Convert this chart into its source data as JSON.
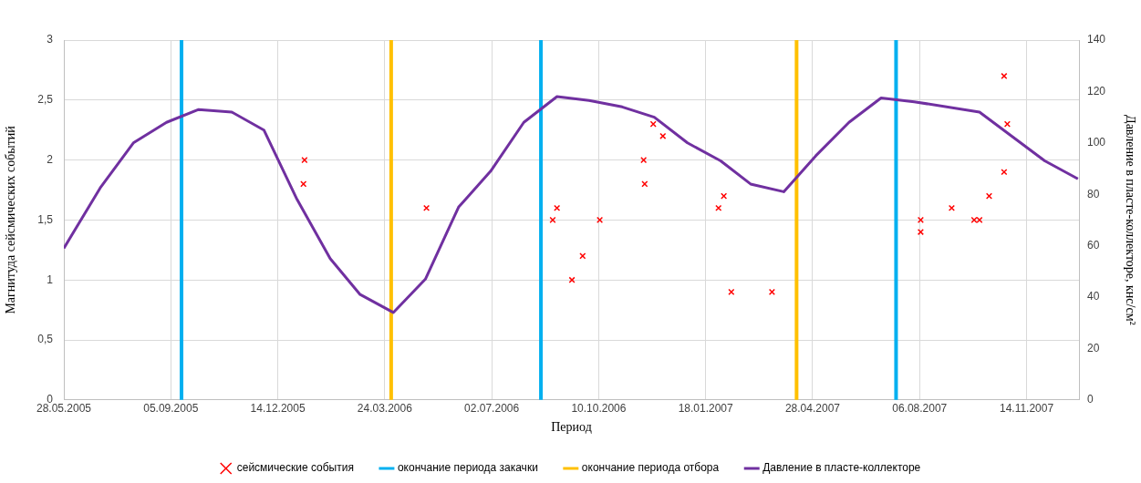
{
  "chart_data": {
    "type": "scatter",
    "xlabel": "Период",
    "ylabel": "Магнитуда сейсмических событий",
    "y2label": "Давление в пласте-коллекторе, кнс/см²",
    "xlim": [
      "2005-05-28",
      "2008-01-02"
    ],
    "xticks": [
      {
        "value": "2005-05-28",
        "label": "28.05.2005"
      },
      {
        "value": "2005-09-05",
        "label": "05.09.2005"
      },
      {
        "value": "2005-12-14",
        "label": "14.12.2005"
      },
      {
        "value": "2006-03-24",
        "label": "24.03.2006"
      },
      {
        "value": "2006-07-02",
        "label": "02.07.2006"
      },
      {
        "value": "2006-10-10",
        "label": "10.10.2006"
      },
      {
        "value": "2007-01-18",
        "label": "18.01.2007"
      },
      {
        "value": "2007-04-28",
        "label": "28.04.2007"
      },
      {
        "value": "2007-08-06",
        "label": "06.08.2007"
      },
      {
        "value": "2007-11-14",
        "label": "14.11.2007"
      }
    ],
    "ylim": [
      0,
      3
    ],
    "yticks": [
      0,
      {
        "value": 0.5,
        "label": "0,5"
      },
      1,
      {
        "value": 1.5,
        "label": "1,5"
      },
      2,
      {
        "value": 2.5,
        "label": "2,5"
      },
      3
    ],
    "y2lim": [
      0,
      140
    ],
    "y2ticks": [
      0,
      20,
      40,
      60,
      80,
      100,
      120,
      140
    ],
    "grid": true,
    "legend": "bottom",
    "marker": "cross",
    "series": [
      {
        "name": "сейсмические события",
        "type": "scatter",
        "color": "#ff0000",
        "x": [
          "2006-01-07",
          "2006-01-08",
          "2006-05-02",
          "2006-08-28",
          "2006-09-01",
          "2006-09-15",
          "2006-09-25",
          "2006-10-11",
          "2006-11-21",
          "2006-11-22",
          "2006-11-30",
          "2006-12-09",
          "2007-01-30",
          "2007-02-04",
          "2007-02-11",
          "2007-03-21",
          "2007-08-07",
          "2007-08-07",
          "2007-09-05",
          "2007-09-26",
          "2007-10-01",
          "2007-10-10",
          "2007-10-24",
          "2007-10-24",
          "2007-10-27"
        ],
        "values": [
          1.8,
          2.0,
          1.6,
          1.5,
          1.6,
          1.0,
          1.2,
          1.5,
          2.0,
          1.8,
          2.3,
          2.2,
          1.6,
          1.7,
          0.9,
          0.9,
          1.5,
          1.4,
          1.6,
          1.5,
          1.5,
          1.7,
          1.9,
          2.7,
          2.3
        ]
      },
      {
        "name": "Давление в пласте-коллекторе",
        "type": "line",
        "axis": "y2",
        "color": "#7030a0",
        "marker": "none",
        "line_style": "solid",
        "x": [
          "2005-05-28",
          "2005-07-01",
          "2005-08-01",
          "2005-09-01",
          "2005-10-01",
          "2005-11-01",
          "2005-12-01",
          "2006-01-01",
          "2006-02-01",
          "2006-03-01",
          "2006-04-01",
          "2006-05-01",
          "2006-06-01",
          "2006-07-01",
          "2006-08-01",
          "2006-09-01",
          "2006-10-01",
          "2006-11-01",
          "2006-12-01",
          "2007-01-01",
          "2007-02-01",
          "2007-03-01",
          "2007-04-01",
          "2007-05-01",
          "2007-06-01",
          "2007-07-01",
          "2007-08-01",
          "2007-10-01",
          "2007-12-01",
          "2008-01-01"
        ],
        "values": [
          59,
          82.5,
          100,
          108,
          113,
          112,
          105,
          78,
          55,
          41,
          34,
          47,
          75,
          89,
          108,
          118,
          116.5,
          114,
          110,
          100,
          93,
          84,
          81,
          95,
          108,
          117.5,
          116,
          112,
          93,
          86
        ]
      }
    ],
    "ref_lines": [
      {
        "axis": "x",
        "value": "2005-09-15",
        "label": "окончание периода закачки",
        "color": "#00b0f0"
      },
      {
        "axis": "x",
        "value": "2006-03-30",
        "label": "окончание периода отбора",
        "color": "#ffc000"
      },
      {
        "axis": "x",
        "value": "2006-08-17",
        "color": "#00b0f0"
      },
      {
        "axis": "x",
        "value": "2007-04-13",
        "color": "#ffc000"
      },
      {
        "axis": "x",
        "value": "2007-07-15",
        "color": "#00b0f0"
      }
    ]
  }
}
